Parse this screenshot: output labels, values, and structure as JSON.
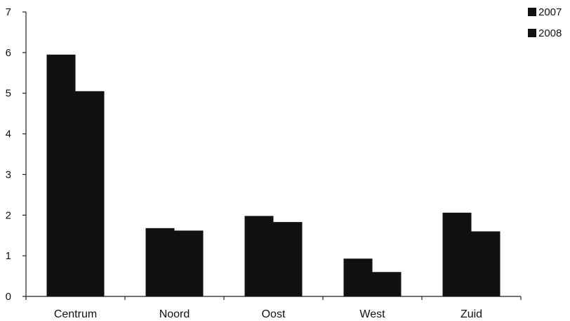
{
  "chart_data": {
    "type": "bar",
    "categories": [
      "Centrum",
      "Noord",
      "Oost",
      "West",
      "Zuid"
    ],
    "series": [
      {
        "name": "2007",
        "values": [
          5.95,
          1.68,
          1.98,
          0.93,
          2.06
        ]
      },
      {
        "name": "2008",
        "values": [
          5.05,
          1.62,
          1.83,
          0.6,
          1.6
        ]
      }
    ],
    "ylim": [
      0,
      7
    ],
    "yticks": [
      "0",
      "1",
      "2",
      "3",
      "4",
      "5",
      "6",
      "7"
    ],
    "grid": false,
    "legend_position": "top-right",
    "colors": {
      "bars": "#111111",
      "axis": "#222222"
    }
  }
}
